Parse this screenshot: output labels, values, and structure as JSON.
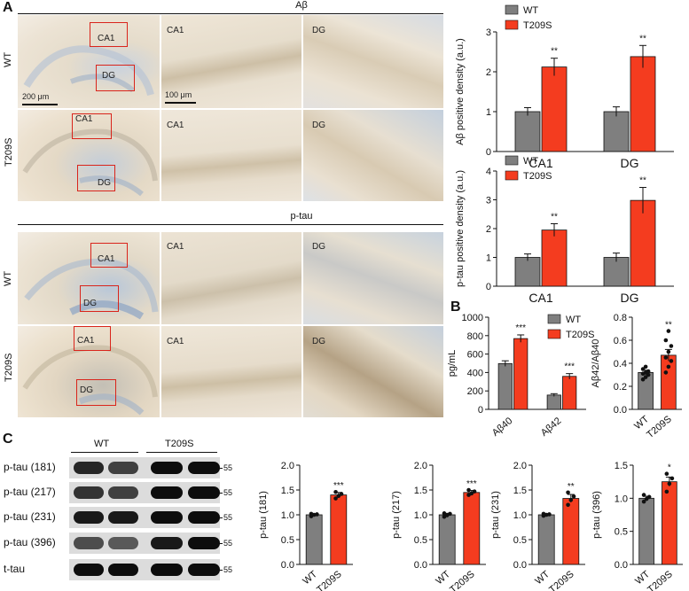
{
  "panels": {
    "A": "A",
    "B": "B",
    "C": "C"
  },
  "colors": {
    "wt": "#7f7f7f",
    "t209s": "#f43c1f",
    "box": "#d9241b",
    "tissue": "#e9dcc8",
    "stain": "#8ca4c4"
  },
  "sectionA": {
    "abeta_title": "Aβ",
    "ptau_title": "p-tau",
    "row_wt": "WT",
    "row_t209s": "T209S",
    "label_ca1": "CA1",
    "label_dg": "DG",
    "scale_200": "200 μm",
    "scale_100": "100 μm"
  },
  "legend": {
    "wt": "WT",
    "t209s": "T209S"
  },
  "sig": {
    "s1": "*",
    "s2": "**",
    "s3": "***"
  },
  "chart_data": [
    {
      "id": "abeta_density",
      "type": "bar",
      "ylabel": "Aβ positive density (a.u.)",
      "categories": [
        "CA1",
        "DG"
      ],
      "ylim": [
        0,
        3
      ],
      "yticks": [
        "0",
        "1",
        "2",
        "3"
      ],
      "series": [
        {
          "name": "WT",
          "values": [
            1.0,
            1.0
          ],
          "errors": [
            0.1,
            0.12
          ]
        },
        {
          "name": "T209S",
          "values": [
            2.12,
            2.38
          ],
          "errors": [
            0.22,
            0.28
          ]
        }
      ],
      "significance": [
        "**",
        "**"
      ]
    },
    {
      "id": "ptau_density",
      "type": "bar",
      "ylabel": "p-tau positive density (a.u.)",
      "categories": [
        "CA1",
        "DG"
      ],
      "ylim": [
        0,
        4
      ],
      "yticks": [
        "0",
        "1",
        "2",
        "3",
        "4"
      ],
      "series": [
        {
          "name": "WT",
          "values": [
            1.0,
            1.0
          ],
          "errors": [
            0.12,
            0.15
          ]
        },
        {
          "name": "T209S",
          "values": [
            1.95,
            2.98
          ],
          "errors": [
            0.22,
            0.45
          ]
        }
      ],
      "significance": [
        "**",
        "**"
      ]
    },
    {
      "id": "abeta_elisa",
      "type": "bar",
      "ylabel": "pg/mL",
      "categories": [
        "Aβ40",
        "Aβ42"
      ],
      "ylim": [
        0,
        1000
      ],
      "yticks": [
        "0",
        "200",
        "400",
        "600",
        "800",
        "1000"
      ],
      "series": [
        {
          "name": "WT",
          "values": [
            497,
            155
          ],
          "errors": [
            30,
            15
          ]
        },
        {
          "name": "T209S",
          "values": [
            768,
            358
          ],
          "errors": [
            40,
            30
          ]
        }
      ],
      "significance": [
        "***",
        "***"
      ]
    },
    {
      "id": "ratio",
      "type": "bar",
      "ylabel": "Aβ42/Aβ40",
      "categories": [
        "WT",
        "T209S"
      ],
      "ylim": [
        0,
        0.8
      ],
      "yticks": [
        "0.0",
        "0.2",
        "0.4",
        "0.6",
        "0.8"
      ],
      "values": [
        0.32,
        0.47
      ],
      "errors": [
        0.02,
        0.05
      ],
      "points": [
        [
          0.26,
          0.28,
          0.3,
          0.31,
          0.32,
          0.33,
          0.35,
          0.37
        ],
        [
          0.32,
          0.37,
          0.42,
          0.45,
          0.5,
          0.55,
          0.6,
          0.68
        ]
      ],
      "significance": "**"
    },
    {
      "id": "ptau181",
      "type": "bar",
      "ylabel": "p-tau (181)",
      "categories": [
        "WT",
        "T209S"
      ],
      "ylim": [
        0,
        2.0
      ],
      "yticks": [
        "0.0",
        "0.5",
        "1.0",
        "1.5",
        "2.0"
      ],
      "values": [
        1.0,
        1.4
      ],
      "errors": [
        0.02,
        0.05
      ],
      "points": [
        [
          0.97,
          1.0,
          1.01,
          1.02
        ],
        [
          1.33,
          1.38,
          1.42,
          1.46
        ]
      ],
      "significance": "***"
    },
    {
      "id": "ptau217",
      "type": "bar",
      "ylabel": "p-tau (217)",
      "categories": [
        "WT",
        "T209S"
      ],
      "ylim": [
        0,
        2.0
      ],
      "yticks": [
        "0.0",
        "0.5",
        "1.0",
        "1.5",
        "2.0"
      ],
      "values": [
        1.0,
        1.45
      ],
      "errors": [
        0.03,
        0.04
      ],
      "points": [
        [
          0.96,
          0.99,
          1.02,
          1.03
        ],
        [
          1.4,
          1.43,
          1.47,
          1.5
        ]
      ],
      "significance": "***"
    },
    {
      "id": "ptau231",
      "type": "bar",
      "ylabel": "p-tau (231)",
      "categories": [
        "WT",
        "T209S"
      ],
      "ylim": [
        0,
        2.0
      ],
      "yticks": [
        "0.0",
        "0.5",
        "1.0",
        "1.5",
        "2.0"
      ],
      "values": [
        1.0,
        1.33
      ],
      "errors": [
        0.02,
        0.08
      ],
      "points": [
        [
          0.98,
          1.0,
          1.01,
          1.02
        ],
        [
          1.2,
          1.3,
          1.37,
          1.45
        ]
      ],
      "significance": "**"
    },
    {
      "id": "ptau396",
      "type": "bar",
      "ylabel": "p-tau (396)",
      "categories": [
        "WT",
        "T209S"
      ],
      "ylim": [
        0,
        1.5
      ],
      "yticks": [
        "0.0",
        "0.5",
        "1.0",
        "1.5"
      ],
      "values": [
        1.0,
        1.25
      ],
      "errors": [
        0.03,
        0.07
      ],
      "points": [
        [
          0.95,
          0.99,
          1.02,
          1.05
        ],
        [
          1.1,
          1.22,
          1.3,
          1.37
        ]
      ],
      "significance": "*"
    }
  ],
  "western": {
    "group_wt": "WT",
    "group_t209s": "T209S",
    "rows": [
      {
        "label": "p-tau (181)",
        "mw": "55"
      },
      {
        "label": "p-tau (217)",
        "mw": "55"
      },
      {
        "label": "p-tau (231)",
        "mw": "55"
      },
      {
        "label": "p-tau (396)",
        "mw": "55"
      },
      {
        "label": "t-tau",
        "mw": "55"
      }
    ]
  }
}
